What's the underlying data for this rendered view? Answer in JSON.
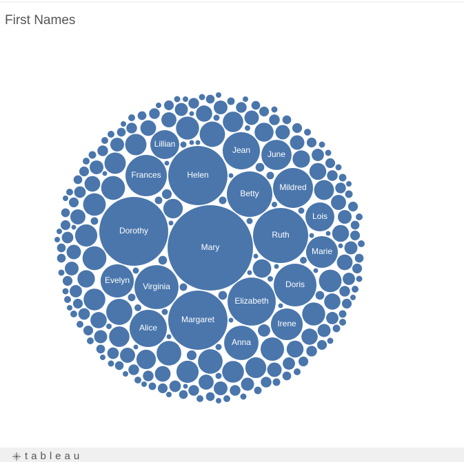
{
  "chart_data": {
    "type": "packed-bubble",
    "title": "First Names",
    "color": "#4a76ac",
    "categories": [
      "Mary",
      "Dorothy",
      "Helen",
      "Margaret",
      "Ruth",
      "Elizabeth",
      "Betty",
      "Virginia",
      "Doris",
      "Frances",
      "Mildred",
      "Alice",
      "Jean",
      "Anna",
      "Evelyn",
      "Irene",
      "Marie",
      "June",
      "Lillian",
      "Lois",
      null,
      null,
      null,
      null,
      null,
      null,
      null,
      null,
      null,
      null,
      null,
      null,
      null,
      null,
      null,
      null,
      null,
      null,
      null,
      null,
      null,
      null,
      null,
      null,
      null,
      null,
      null,
      null,
      null,
      null,
      null,
      null,
      null,
      null,
      null,
      null,
      null,
      null,
      null,
      null,
      null,
      null,
      null,
      null,
      null,
      null,
      null,
      null,
      null,
      null,
      null,
      null,
      null,
      null,
      null,
      null,
      null,
      null,
      null,
      null,
      null,
      null,
      null,
      null,
      null,
      null,
      null,
      null,
      null,
      null,
      null,
      null,
      null,
      null,
      null,
      null,
      null,
      null,
      null,
      null,
      null,
      null,
      null,
      null,
      null,
      null,
      null,
      null,
      null,
      null,
      null,
      null,
      null,
      null,
      null,
      null,
      null,
      null,
      null,
      null,
      null,
      null,
      null,
      null,
      null,
      null,
      null,
      null,
      null,
      null,
      null,
      null,
      null,
      null,
      null,
      null,
      null,
      null,
      null,
      null,
      null,
      null,
      null,
      null,
      null,
      null,
      null,
      null,
      null,
      null,
      null,
      null,
      null,
      null,
      null,
      null,
      null,
      null,
      null,
      null,
      null,
      null,
      null,
      null,
      null,
      null,
      null,
      null,
      null,
      null,
      null,
      null,
      null,
      null,
      null,
      null,
      null,
      null,
      null,
      null,
      null,
      null,
      null,
      null,
      null,
      null,
      null,
      null,
      null,
      null,
      null,
      null,
      null,
      null,
      null,
      null,
      null,
      null,
      null,
      null,
      null,
      null,
      null,
      null,
      null,
      null,
      null,
      null,
      null,
      null,
      null,
      null,
      null,
      null,
      null,
      null,
      null,
      null,
      null,
      null,
      null,
      null,
      null,
      null,
      null,
      null,
      null,
      null,
      null,
      null,
      null,
      null,
      null,
      null,
      null,
      null,
      null,
      null,
      null,
      null
    ],
    "values": [
      384,
      250,
      185,
      185,
      160,
      122,
      109,
      102,
      96,
      90,
      84,
      73,
      73,
      62,
      58,
      53,
      53,
      48,
      44,
      44,
      36,
      34,
      32,
      32,
      30,
      30,
      29,
      28,
      28,
      27,
      27,
      26,
      26,
      25,
      25,
      24,
      24,
      23,
      22,
      22,
      21,
      20,
      20,
      19,
      18,
      16,
      16,
      15,
      15,
      15,
      14,
      14,
      14,
      14,
      13,
      13,
      13,
      13,
      12,
      12,
      12,
      12,
      12,
      11,
      11,
      11,
      11,
      11,
      10,
      10,
      10,
      10,
      10,
      10,
      9,
      9,
      9,
      9,
      9,
      8,
      8,
      8,
      8,
      8,
      8,
      7,
      7,
      7,
      7,
      7,
      6,
      6,
      6,
      6,
      6,
      6,
      6,
      6,
      6,
      6,
      6,
      6,
      6,
      6,
      6,
      5,
      5,
      5,
      5,
      5,
      5,
      5,
      5,
      5,
      5,
      5,
      5,
      5,
      5,
      5,
      5,
      5,
      5,
      5,
      5,
      4,
      4,
      4,
      4,
      4,
      4,
      4,
      4,
      4,
      4,
      4,
      4,
      4,
      4,
      4,
      4,
      4,
      4,
      4,
      4,
      3,
      3,
      3,
      3,
      3,
      3,
      3,
      3,
      3,
      3,
      3,
      3,
      3,
      3,
      3,
      2.5,
      2.5,
      2.5,
      2.5,
      2.5,
      2.5,
      2.5,
      2.5,
      2.5,
      2.5,
      2.5,
      2.5,
      2.5,
      2.5,
      2.5,
      2.5,
      2.5,
      2.5,
      2.5,
      2.5,
      2,
      2,
      2,
      2,
      2,
      2,
      2,
      2,
      2,
      2,
      2,
      2,
      2,
      2,
      2,
      2,
      2,
      2,
      2,
      2,
      1.6,
      1.6,
      1.6,
      1.6,
      1.6,
      1.6,
      1.6,
      1.6,
      1.6,
      1.6,
      1.6,
      1.6,
      1.6,
      1.6,
      1.6,
      1.6,
      1.6,
      1.6,
      1.6,
      1.6,
      1.2,
      1.2,
      1.2,
      1.2,
      1.2,
      1.2,
      1.2,
      1.2,
      1.2,
      1.2,
      1.2,
      1.2,
      1.2,
      1.2,
      1.2,
      1.2,
      1.2,
      1.2,
      1.2,
      1.2
    ]
  },
  "footer_logo": "tableau"
}
